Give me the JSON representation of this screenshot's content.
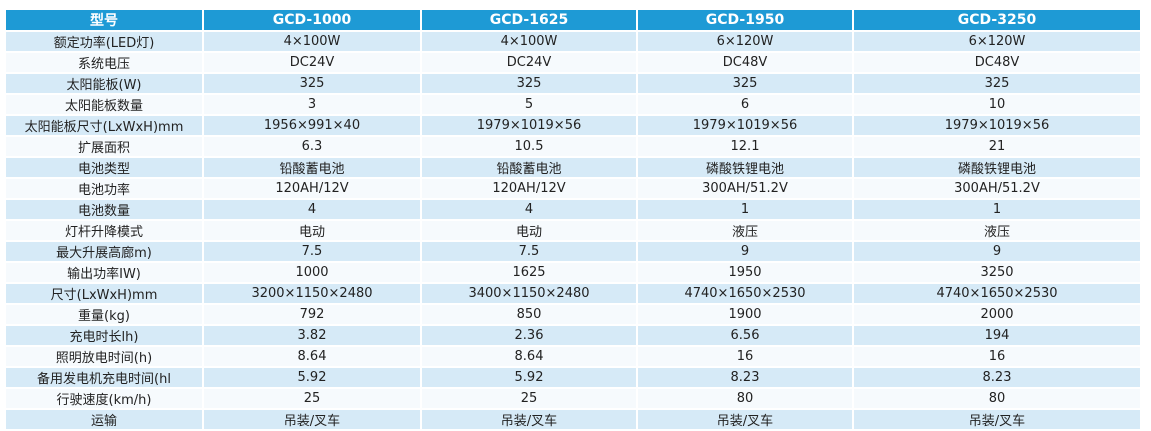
{
  "table": {
    "header": [
      "型号",
      "GCD-1000",
      "GCD-1625",
      "GCD-1950",
      "GCD-3250"
    ],
    "rows": [
      [
        "额定功率(LED灯)",
        "4×100W",
        "4×100W",
        "6×120W",
        "6×120W"
      ],
      [
        "系统电压",
        "DC24V",
        "DC24V",
        "DC48V",
        "DC48V"
      ],
      [
        "太阳能板(W)",
        "325",
        "325",
        "325",
        "325"
      ],
      [
        "太阳能板数量",
        "3",
        "5",
        "6",
        "10"
      ],
      [
        "太阳能板尺寸(LxWxH)mm",
        "1956×991×40",
        "1979×1019×56",
        "1979×1019×56",
        "1979×1019×56"
      ],
      [
        "扩展面积",
        "6.3",
        "10.5",
        "12.1",
        "21"
      ],
      [
        "电池类型",
        "铅酸蓄电池",
        "铅酸蓄电池",
        "磷酸铁锂电池",
        "磷酸铁锂电池"
      ],
      [
        "电池功率",
        "120AH/12V",
        "120AH/12V",
        "300AH/51.2V",
        "300AH/51.2V"
      ],
      [
        "电池数量",
        "4",
        "4",
        "1",
        "1"
      ],
      [
        "灯杆升降模式",
        "电动",
        "电动",
        "液压",
        "液压"
      ],
      [
        "最大升展高廊m)",
        "7.5",
        "7.5",
        "9",
        "9"
      ],
      [
        "输出功率IW)",
        "1000",
        "1625",
        "1950",
        "3250"
      ],
      [
        "尺寸(LxWxH)mm",
        "3200×1150×2480",
        "3400×1150×2480",
        "4740×1650×2530",
        "4740×1650×2530"
      ],
      [
        "重量(kg)",
        "792",
        "850",
        "1900",
        "2000"
      ],
      [
        "充电时长lh)",
        "3.82",
        "2.36",
        "6.56",
        "194"
      ],
      [
        "照明放电时间(h)",
        "8.64",
        "8.64",
        "16",
        "16"
      ],
      [
        "备用发电机充电时间(hl",
        "5.92",
        "5.92",
        "8.23",
        "8.23"
      ],
      [
        "行驶速度(km/h)",
        "25",
        "25",
        "80",
        "80"
      ],
      [
        "运输",
        "吊装/叉车",
        "吊装/叉车",
        "吊装/叉车",
        "吊装/叉车"
      ]
    ]
  },
  "colors": {
    "header_bg": "#1e9ad5",
    "header_text": "#ffffff",
    "row_odd_bg": "#d6eaf7",
    "row_even_bg": "#f6fafd",
    "body_text": "#222222"
  }
}
